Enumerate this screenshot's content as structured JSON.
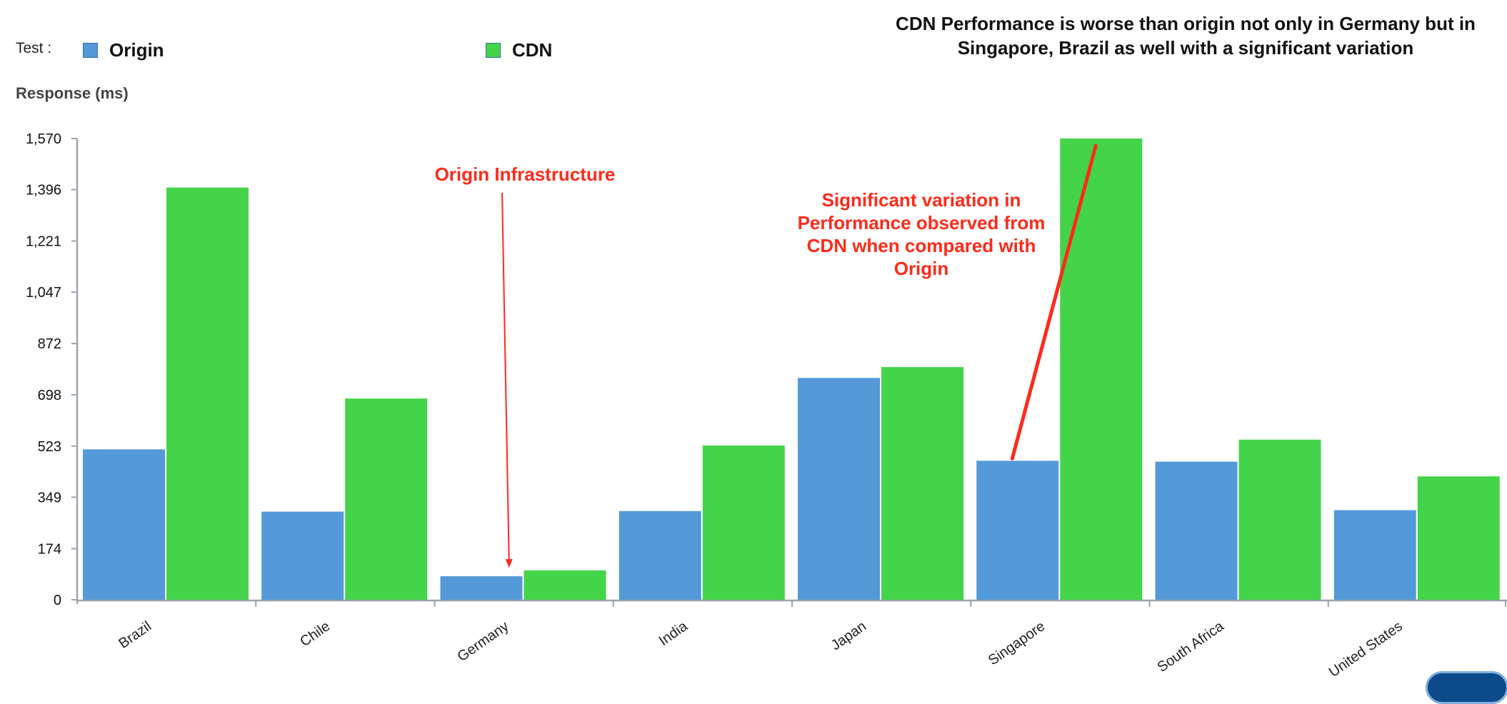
{
  "legend": {
    "label": "Test :",
    "items": [
      {
        "name": "Origin",
        "color": "#5499d8"
      },
      {
        "name": "CDN",
        "color": "#44d44a"
      }
    ]
  },
  "headline": "CDN Performance is worse than origin not only in Germany but in Singapore, Brazil as well with a significant variation",
  "annotations": {
    "origin_infra": "Origin Infrastructure",
    "variation": "Significant variation in Performance observed from CDN when compared with Origin"
  },
  "chart_data": {
    "type": "bar",
    "ylabel": "Response (ms)",
    "ylim": [
      0,
      1570
    ],
    "yticks": [
      "0",
      "174",
      "349",
      "523",
      "698",
      "872",
      "1,047",
      "1,221",
      "1,396",
      "1,570"
    ],
    "ytick_values": [
      0,
      174,
      349,
      523,
      698,
      872,
      1047,
      1221,
      1396,
      1570
    ],
    "categories": [
      "Brazil",
      "Chile",
      "Germany",
      "India",
      "Japan",
      "Singapore",
      "South Africa",
      "United States"
    ],
    "series": [
      {
        "name": "Origin",
        "color": "#5499d8",
        "values": [
          512,
          300,
          80,
          302,
          755,
          473,
          470,
          305
        ]
      },
      {
        "name": "CDN",
        "color": "#44d44a",
        "values": [
          1403,
          685,
          100,
          525,
          792,
          1570,
          545,
          420
        ]
      }
    ],
    "grid": false,
    "legend": "top-left"
  }
}
